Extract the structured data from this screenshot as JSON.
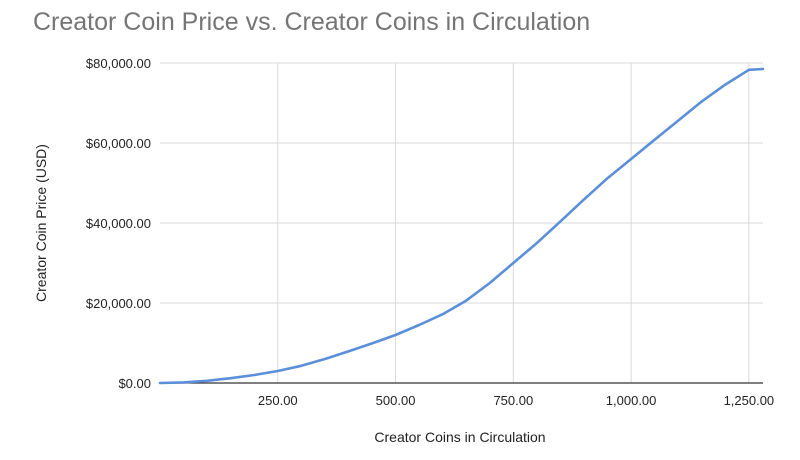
{
  "chart_data": {
    "type": "line",
    "title": "Creator Coin Price vs. Creator Coins in Circulation",
    "xlabel": "Creator Coins in Circulation",
    "ylabel": "Creator Coin Price (USD)",
    "xlim": [
      0,
      1280
    ],
    "ylim": [
      0,
      80000
    ],
    "x_ticks": [
      250,
      500,
      750,
      1000,
      1250
    ],
    "x_tick_labels": [
      "250.00",
      "500.00",
      "750.00",
      "1,000.00",
      "1,250.00"
    ],
    "y_ticks": [
      0,
      20000,
      40000,
      60000,
      80000
    ],
    "y_tick_labels": [
      "$0.00",
      "$20,000.00",
      "$40,000.00",
      "$60,000.00",
      "$80,000.00"
    ],
    "grid": true,
    "series": [
      {
        "color": "#5B8FD9",
        "x": [
          0,
          50,
          100,
          150,
          200,
          250,
          300,
          350,
          400,
          450,
          500,
          550,
          600,
          650,
          700,
          750,
          800,
          850,
          900,
          950,
          1000,
          1050,
          1100,
          1150,
          1200,
          1250,
          1280
        ],
        "y": [
          0,
          150,
          550,
          1200,
          2000,
          3000,
          4300,
          6000,
          7900,
          9900,
          12000,
          14500,
          17200,
          20600,
          25000,
          30000,
          35000,
          40400,
          45900,
          51200,
          56000,
          60800,
          65600,
          70400,
          74600,
          78300,
          78500
        ]
      }
    ]
  }
}
